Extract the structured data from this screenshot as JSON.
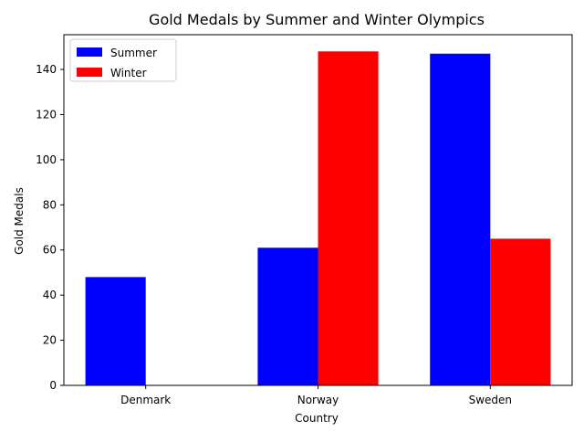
{
  "chart_data": {
    "type": "bar",
    "title": "Gold Medals by Summer and Winter Olympics",
    "xlabel": "Country",
    "ylabel": "Gold Medals",
    "categories": [
      "Denmark",
      "Norway",
      "Sweden"
    ],
    "series": [
      {
        "name": "Summer",
        "color": "#0000ff",
        "values": [
          48,
          61,
          147
        ]
      },
      {
        "name": "Winter",
        "color": "#ff0000",
        "values": [
          0,
          148,
          65
        ]
      }
    ],
    "ylim": [
      0,
      155.4
    ],
    "yticks": [
      0,
      20,
      40,
      60,
      80,
      100,
      120,
      140
    ],
    "grid": false,
    "legend_position": "top-left"
  }
}
